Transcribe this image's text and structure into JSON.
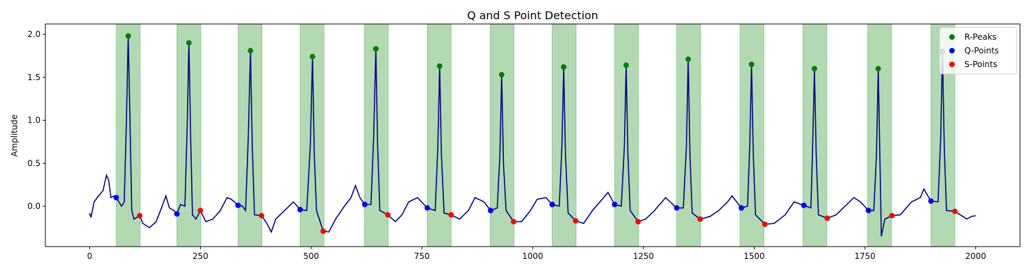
{
  "chart_data": {
    "type": "line",
    "title": "Q and S Point Detection",
    "ylabel": "Amplitude",
    "xlim": [
      -100,
      2100
    ],
    "ylim": [
      -0.47,
      2.12
    ],
    "xticks": [
      0,
      250,
      500,
      750,
      1000,
      1250,
      1500,
      1750,
      2000
    ],
    "yticks": [
      {
        "value": 0.0,
        "label": "0.0"
      },
      0.5,
      {
        "value": 1.0,
        "label": "1.0"
      },
      1.5,
      {
        "value": 2.0,
        "label": "2.0"
      }
    ],
    "legend": "upper right",
    "span_color": "#008000",
    "spans": [
      [
        60,
        114
      ],
      [
        197,
        251
      ],
      [
        335,
        389
      ],
      [
        475,
        529
      ],
      [
        620,
        674
      ],
      [
        762,
        816
      ],
      [
        904,
        958
      ],
      [
        1044,
        1098
      ],
      [
        1185,
        1239
      ],
      [
        1325,
        1379
      ],
      [
        1468,
        1522
      ],
      [
        1610,
        1664
      ],
      [
        1756,
        1810
      ],
      [
        1899,
        1953
      ]
    ],
    "line": {
      "color": "#00008b",
      "x": [
        0,
        3,
        10,
        20,
        30,
        38,
        43,
        48,
        55,
        60,
        66,
        72,
        78,
        83,
        87,
        91,
        95,
        100,
        113,
        120,
        135,
        150,
        160,
        172,
        180,
        190,
        197,
        205,
        215,
        220,
        224,
        228,
        232,
        240,
        250,
        262,
        278,
        295,
        310,
        320,
        335,
        345,
        352,
        358,
        363,
        367,
        372,
        388,
        400,
        410,
        420,
        440,
        460,
        475,
        490,
        498,
        503,
        507,
        512,
        527,
        540,
        555,
        575,
        590,
        600,
        610,
        621,
        635,
        641,
        646,
        650,
        655,
        673,
        690,
        705,
        720,
        740,
        762,
        780,
        786,
        790,
        794,
        800,
        816,
        835,
        855,
        870,
        890,
        905,
        920,
        926,
        930,
        934,
        940,
        957,
        975,
        995,
        1010,
        1030,
        1044,
        1060,
        1066,
        1070,
        1074,
        1080,
        1097,
        1115,
        1135,
        1160,
        1170,
        1185,
        1200,
        1207,
        1211,
        1215,
        1220,
        1238,
        1255,
        1275,
        1300,
        1325,
        1340,
        1347,
        1351,
        1355,
        1360,
        1378,
        1400,
        1420,
        1440,
        1450,
        1471,
        1485,
        1490,
        1494,
        1498,
        1503,
        1524,
        1545,
        1570,
        1590,
        1612,
        1628,
        1632,
        1636,
        1640,
        1645,
        1665,
        1685,
        1705,
        1725,
        1740,
        1758,
        1770,
        1776,
        1780,
        1784,
        1787,
        1795,
        1811,
        1830,
        1855,
        1875,
        1883,
        1899,
        1915,
        1921,
        1925,
        1929,
        1934,
        1953,
        1965,
        1980,
        1990,
        2000
      ],
      "values": [
        -0.08,
        -0.13,
        0.05,
        0.12,
        0.18,
        0.36,
        0.3,
        0.1,
        0.12,
        0.1,
        0.05,
        0.0,
        0.05,
        1.0,
        1.98,
        1.0,
        -0.05,
        -0.15,
        -0.11,
        -0.2,
        -0.25,
        -0.18,
        -0.05,
        0.12,
        -0.02,
        -0.05,
        -0.09,
        0.02,
        0.0,
        0.9,
        1.9,
        0.8,
        -0.1,
        -0.15,
        -0.05,
        -0.18,
        -0.15,
        -0.05,
        0.1,
        0.08,
        0.01,
        0.0,
        -0.05,
        0.8,
        1.81,
        0.7,
        -0.1,
        -0.11,
        -0.2,
        -0.3,
        -0.15,
        -0.05,
        0.05,
        -0.04,
        -0.05,
        0.7,
        1.74,
        0.6,
        -0.05,
        -0.29,
        -0.3,
        -0.15,
        0.0,
        0.1,
        0.24,
        0.1,
        0.02,
        0.02,
        0.8,
        1.83,
        0.7,
        -0.05,
        -0.1,
        -0.18,
        -0.1,
        0.05,
        0.1,
        -0.02,
        -0.05,
        0.7,
        1.63,
        0.6,
        -0.08,
        -0.1,
        -0.15,
        -0.05,
        0.1,
        0.05,
        -0.05,
        -0.02,
        0.6,
        1.53,
        0.5,
        -0.05,
        -0.18,
        -0.18,
        -0.05,
        0.08,
        0.1,
        0.02,
        0.0,
        0.7,
        1.62,
        0.6,
        -0.08,
        -0.17,
        -0.2,
        -0.05,
        0.1,
        0.16,
        0.02,
        0.0,
        0.7,
        1.64,
        0.6,
        -0.05,
        -0.18,
        -0.15,
        -0.05,
        0.1,
        -0.02,
        -0.02,
        0.7,
        1.71,
        0.6,
        -0.08,
        -0.15,
        -0.12,
        -0.05,
        0.05,
        0.12,
        -0.02,
        0.0,
        0.7,
        1.65,
        0.6,
        -0.1,
        -0.21,
        -0.2,
        -0.1,
        0.05,
        0.01,
        -0.02,
        0.7,
        1.6,
        0.6,
        -0.1,
        -0.14,
        -0.1,
        0.0,
        0.1,
        0.05,
        -0.05,
        -0.05,
        0.6,
        1.6,
        0.5,
        -0.35,
        -0.15,
        -0.11,
        -0.1,
        0.05,
        0.1,
        0.2,
        0.06,
        0.05,
        0.8,
        1.8,
        0.7,
        -0.05,
        -0.06,
        -0.1,
        -0.15,
        -0.12,
        -0.11
      ]
    },
    "series": [
      {
        "name": "R-Peaks",
        "color": "#008000",
        "x": [
          87,
          224,
          363,
          503,
          646,
          790,
          930,
          1070,
          1211,
          1351,
          1494,
          1636,
          1780,
          1925
        ],
        "values": [
          1.98,
          1.9,
          1.81,
          1.74,
          1.83,
          1.63,
          1.53,
          1.62,
          1.64,
          1.71,
          1.65,
          1.6,
          1.6,
          1.8
        ]
      },
      {
        "name": "Q-Points",
        "color": "#0000ff",
        "x": [
          60,
          197,
          335,
          475,
          621,
          762,
          905,
          1044,
          1185,
          1325,
          1471,
          1612,
          1758,
          1899
        ],
        "values": [
          0.1,
          -0.09,
          0.01,
          -0.04,
          0.02,
          -0.02,
          -0.05,
          0.02,
          0.02,
          -0.02,
          -0.02,
          0.01,
          -0.05,
          0.06
        ]
      },
      {
        "name": "S-Points",
        "color": "#ff0000",
        "x": [
          113,
          250,
          388,
          527,
          673,
          816,
          957,
          1097,
          1238,
          1378,
          1524,
          1665,
          1811,
          1953
        ],
        "values": [
          -0.11,
          -0.05,
          -0.11,
          -0.29,
          -0.1,
          -0.1,
          -0.18,
          -0.17,
          -0.18,
          -0.15,
          -0.21,
          -0.14,
          -0.11,
          -0.06
        ]
      }
    ]
  }
}
